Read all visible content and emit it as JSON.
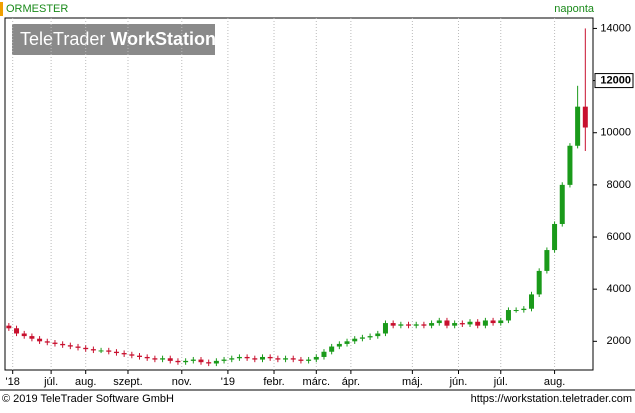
{
  "header": {
    "instrument": "ORMESTER",
    "interval": "naponta",
    "logo": [
      "TeleTrader",
      "WorkStation"
    ]
  },
  "footer": {
    "copyright": "© 2019 TeleTrader Software GmbH",
    "url": "https://workstation.teletrader.com"
  },
  "chart_data": {
    "type": "candlestick",
    "x": [
      0,
      1,
      2,
      3,
      4,
      5,
      6,
      7,
      8,
      9,
      10,
      11,
      12,
      13,
      14,
      15,
      16,
      17,
      18,
      19,
      20,
      21,
      22,
      23,
      24,
      25,
      26,
      27,
      28,
      29,
      30,
      31,
      32,
      33,
      34,
      35,
      36,
      37,
      38,
      39,
      40,
      41,
      42,
      43,
      44,
      45,
      46,
      47,
      48,
      49,
      50,
      51,
      52,
      53,
      54,
      55,
      56,
      57,
      58,
      59,
      60,
      61,
      62,
      63,
      64,
      65,
      66,
      67,
      68,
      69,
      70,
      71,
      72,
      73,
      74,
      75
    ],
    "open": [
      2600,
      2500,
      2300,
      2200,
      2100,
      2000,
      1950,
      1900,
      1850,
      1800,
      1750,
      1700,
      1650,
      1650,
      1600,
      1550,
      1500,
      1450,
      1400,
      1350,
      1300,
      1350,
      1250,
      1200,
      1250,
      1300,
      1200,
      1150,
      1250,
      1300,
      1350,
      1400,
      1350,
      1300,
      1400,
      1350,
      1300,
      1350,
      1300,
      1250,
      1300,
      1400,
      1600,
      1800,
      1900,
      2000,
      2100,
      2150,
      2200,
      2300,
      2700,
      2600,
      2650,
      2600,
      2650,
      2600,
      2700,
      2800,
      2600,
      2700,
      2650,
      2750,
      2600,
      2800,
      2700,
      2800,
      3200,
      3200,
      3250,
      3800,
      4700,
      5500,
      6500,
      8000,
      9500,
      11000
    ],
    "high": [
      2700,
      2600,
      2400,
      2300,
      2200,
      2100,
      2050,
      2000,
      1950,
      1900,
      1850,
      1800,
      1750,
      1750,
      1700,
      1650,
      1600,
      1550,
      1500,
      1450,
      1450,
      1450,
      1350,
      1350,
      1400,
      1400,
      1300,
      1350,
      1400,
      1450,
      1500,
      1500,
      1450,
      1500,
      1500,
      1450,
      1450,
      1450,
      1400,
      1400,
      1500,
      1700,
      1900,
      2000,
      2100,
      2200,
      2250,
      2300,
      2400,
      2800,
      2800,
      2750,
      2750,
      2750,
      2750,
      2800,
      2900,
      2900,
      2800,
      2800,
      2850,
      2850,
      2900,
      2900,
      2900,
      3300,
      3300,
      3350,
      3900,
      4800,
      5600,
      6600,
      8100,
      9600,
      11800,
      14000
    ],
    "low": [
      2400,
      2200,
      2100,
      2000,
      1900,
      1850,
      1800,
      1750,
      1700,
      1650,
      1600,
      1550,
      1550,
      1500,
      1450,
      1400,
      1350,
      1300,
      1250,
      1200,
      1200,
      1150,
      1100,
      1100,
      1150,
      1100,
      1050,
      1050,
      1150,
      1200,
      1250,
      1250,
      1200,
      1200,
      1250,
      1200,
      1200,
      1200,
      1150,
      1150,
      1200,
      1300,
      1500,
      1700,
      1800,
      1900,
      2000,
      2050,
      2100,
      2200,
      2500,
      2500,
      2500,
      2500,
      2500,
      2500,
      2600,
      2500,
      2500,
      2550,
      2550,
      2500,
      2500,
      2600,
      2600,
      2700,
      3100,
      3100,
      3150,
      3700,
      4600,
      5400,
      6400,
      7900,
      9400,
      9300
    ],
    "close": [
      2500,
      2300,
      2200,
      2100,
      2000,
      1950,
      1900,
      1850,
      1800,
      1750,
      1700,
      1650,
      1650,
      1600,
      1550,
      1500,
      1450,
      1400,
      1350,
      1300,
      1350,
      1250,
      1200,
      1250,
      1300,
      1200,
      1150,
      1250,
      1300,
      1350,
      1400,
      1350,
      1300,
      1400,
      1350,
      1300,
      1350,
      1300,
      1250,
      1300,
      1400,
      1600,
      1800,
      1900,
      2000,
      2100,
      2150,
      2200,
      2300,
      2700,
      2600,
      2650,
      2600,
      2650,
      2600,
      2700,
      2800,
      2600,
      2700,
      2650,
      2750,
      2600,
      2800,
      2700,
      2800,
      3200,
      3200,
      3250,
      3800,
      4700,
      5500,
      6500,
      8000,
      9500,
      11000,
      10200
    ],
    "up_color": "#1a9a1a",
    "down_color": "#c8102e",
    "xlim": [
      -0.5,
      76
    ],
    "xticks": [
      {
        "value": 0.5,
        "label": "'18"
      },
      {
        "value": 5.5,
        "label": "júl."
      },
      {
        "value": 10,
        "label": "aug."
      },
      {
        "value": 15.5,
        "label": "szept."
      },
      {
        "value": 22.5,
        "label": "nov."
      },
      {
        "value": 28.5,
        "label": "'19"
      },
      {
        "value": 34.5,
        "label": "febr."
      },
      {
        "value": 40,
        "label": "márc."
      },
      {
        "value": 44.5,
        "label": "ápr."
      },
      {
        "value": 52.5,
        "label": "máj."
      },
      {
        "value": 58.5,
        "label": "jún."
      },
      {
        "value": 64,
        "label": "júl."
      },
      {
        "value": 71,
        "label": "aug."
      }
    ],
    "ylim": [
      900,
      14400
    ],
    "yticks": [
      2000,
      4000,
      6000,
      8000,
      10000,
      12000,
      14000
    ],
    "highlight_tick": 12000,
    "grid": true
  }
}
